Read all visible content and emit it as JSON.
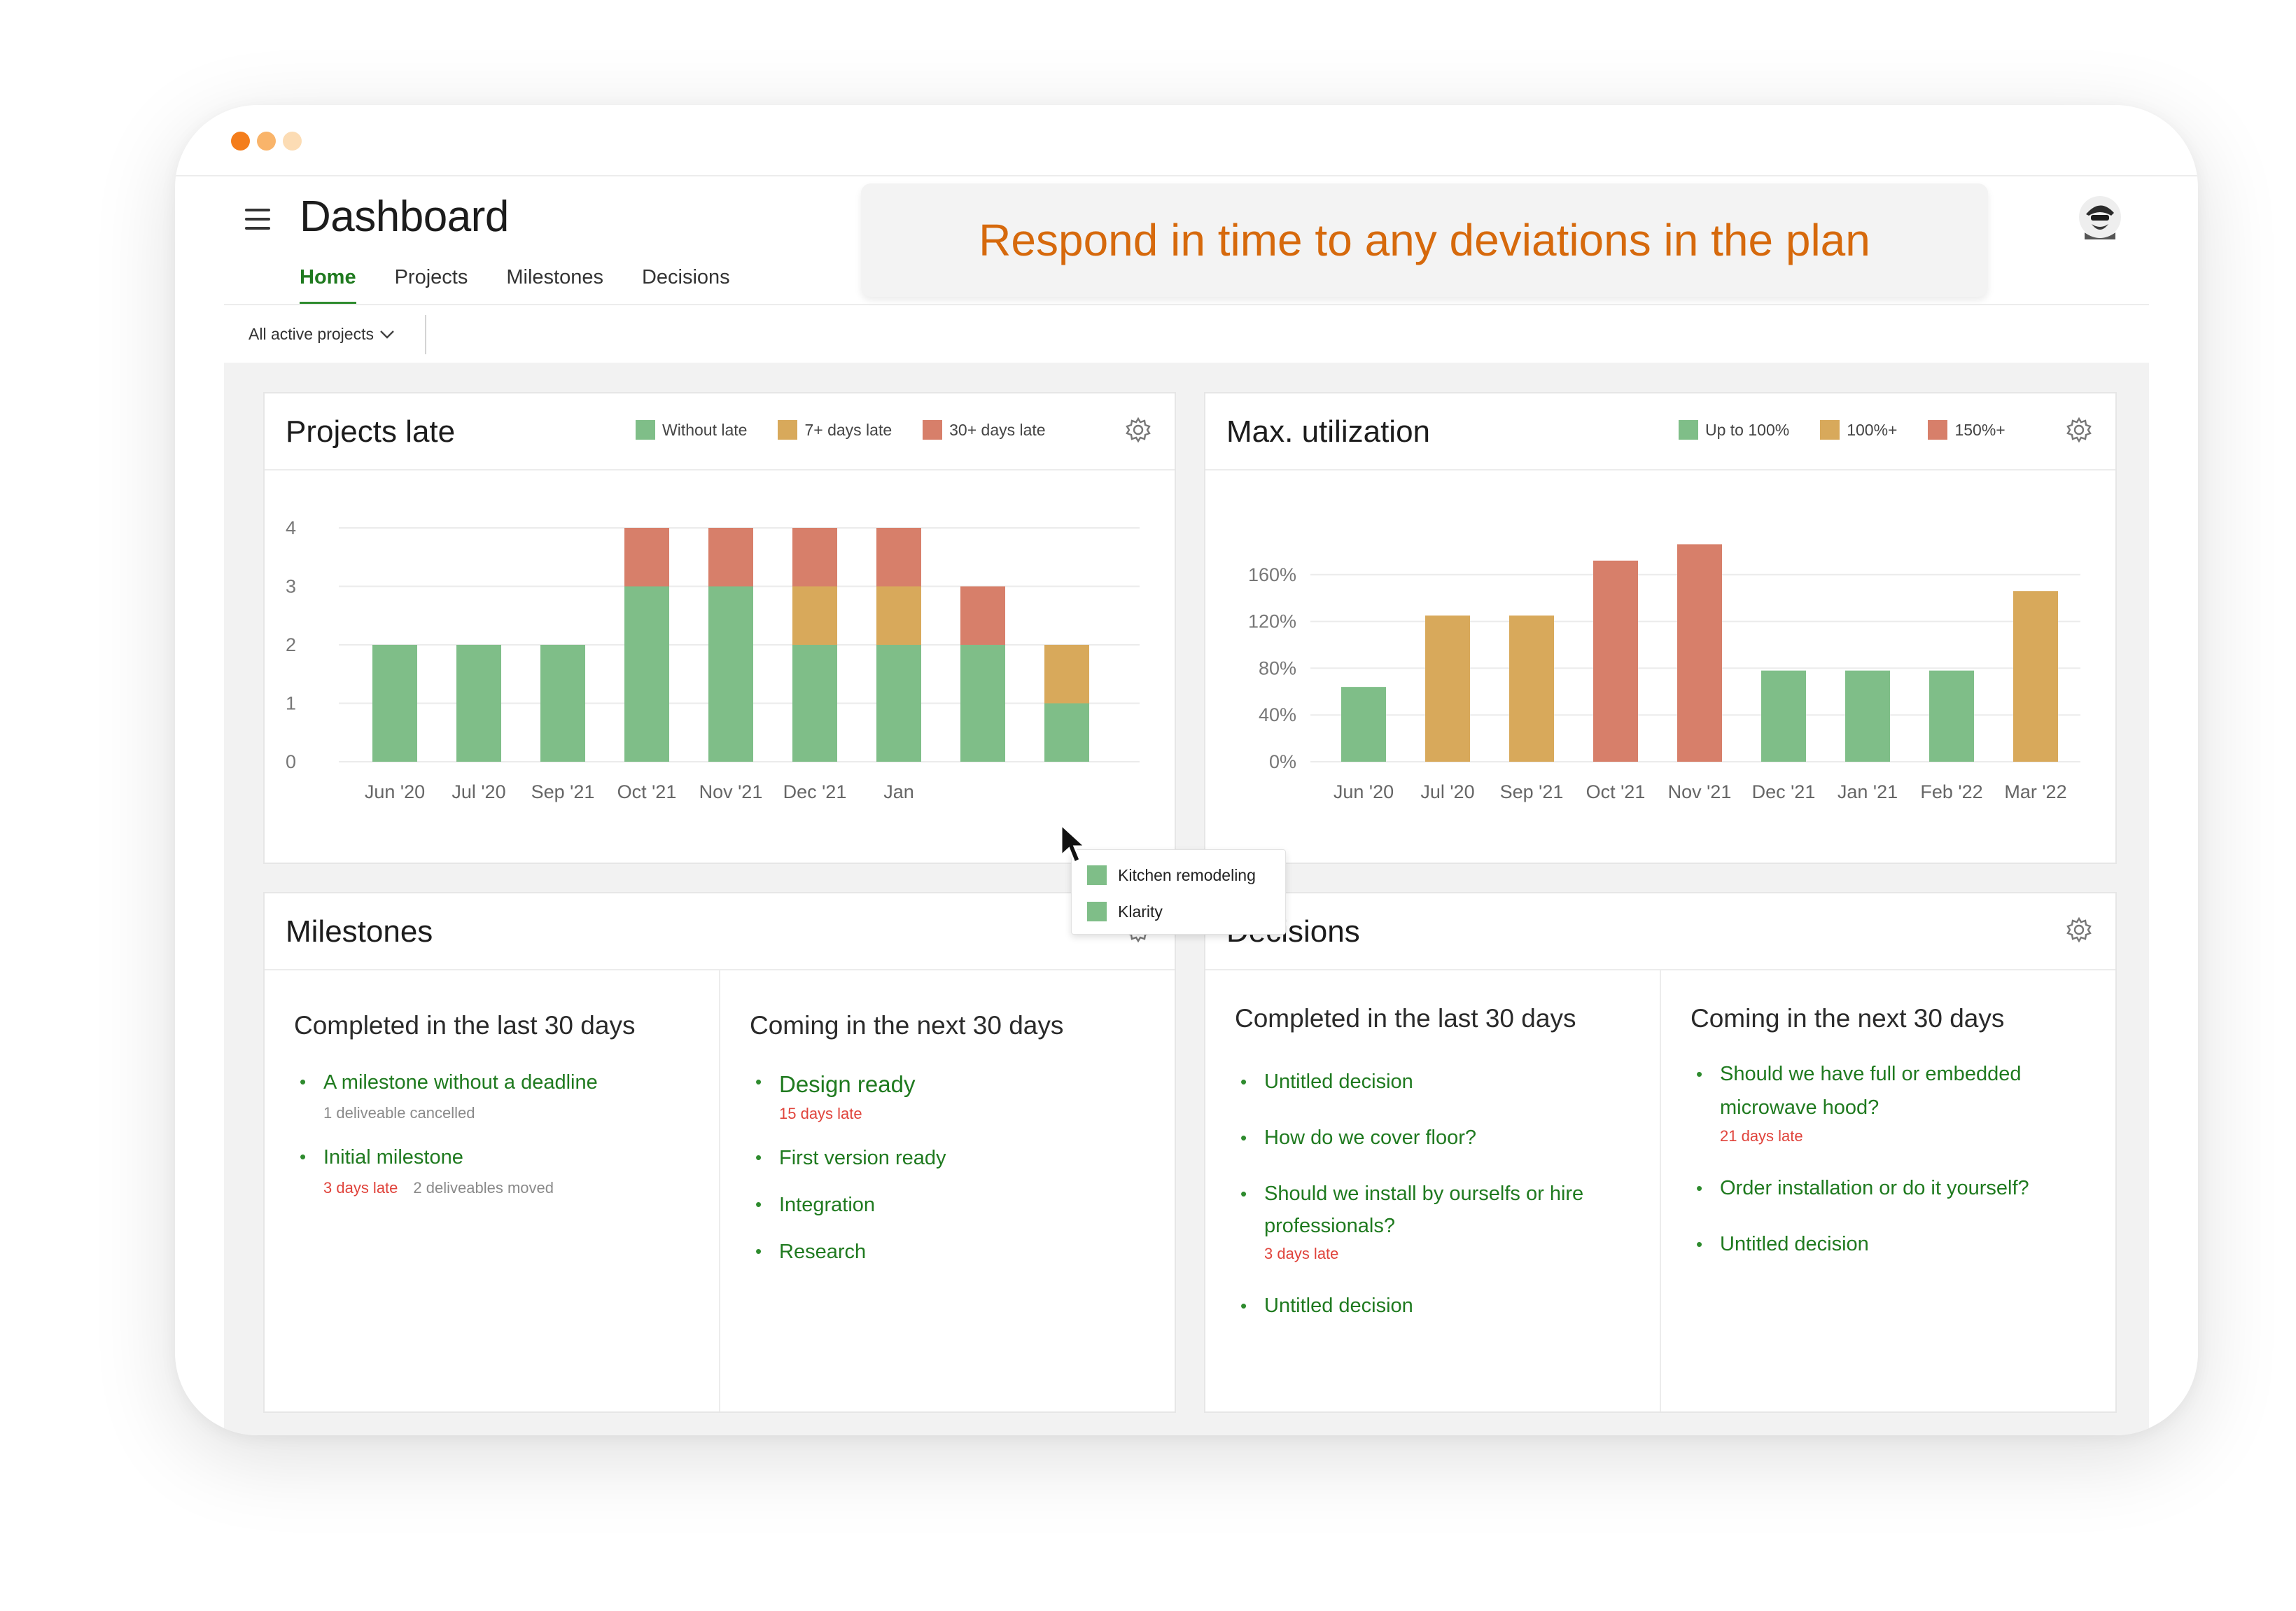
{
  "window": {
    "dot_colors": [
      "#f47d1b",
      "#f9b46a",
      "#fcdcb4"
    ]
  },
  "header": {
    "title": "Dashboard",
    "tabs": [
      "Home",
      "Projects",
      "Milestones",
      "Decisions"
    ],
    "active_tab": "Home",
    "banner": "Respond in time to any deviations in the plan",
    "filter": "All active projects"
  },
  "colors": {
    "green": "#7fbe88",
    "orange": "#d8a95b",
    "red": "#d77f6a",
    "accent": "#1f7a1f",
    "late": "#e0433b"
  },
  "projects_late": {
    "title": "Projects late",
    "legend": [
      {
        "label": "Without late",
        "color": "#7fbe88"
      },
      {
        "label": "7+ days late",
        "color": "#d8a95b"
      },
      {
        "label": "30+ days late",
        "color": "#d77f6a"
      }
    ]
  },
  "utilization": {
    "title": "Max. utilization",
    "legend": [
      {
        "label": "Up to 100%",
        "color": "#7fbe88"
      },
      {
        "label": "100%+",
        "color": "#d8a95b"
      },
      {
        "label": "150%+",
        "color": "#d77f6a"
      }
    ]
  },
  "tooltip": {
    "items": [
      "Kitchen remodeling",
      "Klarity"
    ]
  },
  "milestones": {
    "title": "Milestones",
    "completed": {
      "title": "Completed in the last 30 days",
      "items": [
        {
          "label": "A milestone without a deadline",
          "late": "",
          "meta": "1 deliveable cancelled"
        },
        {
          "label": "Initial milestone",
          "late": "3 days late",
          "meta": "2 deliveables moved"
        }
      ]
    },
    "coming": {
      "title": "Coming in the next 30 days",
      "items": [
        {
          "label": "Design ready",
          "late": "15 days late"
        },
        {
          "label": "First version ready",
          "late": ""
        },
        {
          "label": "Integration",
          "late": ""
        },
        {
          "label": "Research",
          "late": ""
        }
      ]
    }
  },
  "decisions": {
    "title": "Decisions",
    "completed": {
      "title": "Completed in the last 30 days",
      "items": [
        {
          "label": "Untitled decision",
          "late": ""
        },
        {
          "label": "How do we cover floor?",
          "late": ""
        },
        {
          "label": "Should we install by ourselfs or hire professionals?",
          "late": "3 days late"
        },
        {
          "label": "Untitled decision",
          "late": ""
        }
      ]
    },
    "coming": {
      "title": "Coming in the next 30 days",
      "items": [
        {
          "label": "Should we have full or embedded microwave hood?",
          "late": "21 days late"
        },
        {
          "label": "Order installation or do it yourself?",
          "late": ""
        },
        {
          "label": "Untitled decision",
          "late": ""
        }
      ]
    }
  },
  "chart_data": [
    {
      "type": "bar",
      "stacked": true,
      "title": "Projects late",
      "categories": [
        "Jun '20",
        "Jul '20",
        "Sep '21",
        "Oct '21",
        "Nov '21",
        "Dec '21",
        "Jan",
        "",
        ""
      ],
      "series": [
        {
          "name": "Without late",
          "color": "#7fbe88",
          "values": [
            2,
            2,
            2,
            3,
            3,
            2,
            2,
            2,
            1
          ]
        },
        {
          "name": "7+ days late",
          "color": "#d8a95b",
          "values": [
            0,
            0,
            0,
            0,
            0,
            1,
            1,
            0,
            1
          ]
        },
        {
          "name": "30+ days late",
          "color": "#d77f6a",
          "values": [
            0,
            0,
            0,
            1,
            1,
            1,
            1,
            1,
            0
          ]
        }
      ],
      "yticks": [
        0,
        1,
        2,
        3,
        4
      ],
      "ylim": [
        0,
        4
      ],
      "grid": true,
      "legend": "top-right"
    },
    {
      "type": "bar",
      "title": "Max. utilization",
      "categories": [
        "Jun '20",
        "Jul '20",
        "Sep '21",
        "Oct '21",
        "Nov '21",
        "Dec '21",
        "Jan '21",
        "Feb '22",
        "Mar '22"
      ],
      "values": [
        64,
        125,
        125,
        172,
        186,
        78,
        78,
        78,
        146
      ],
      "colors": [
        "#7fbe88",
        "#d8a95b",
        "#d8a95b",
        "#d77f6a",
        "#d77f6a",
        "#7fbe88",
        "#7fbe88",
        "#7fbe88",
        "#d8a95b"
      ],
      "yticks": [
        "0%",
        "40%",
        "80%",
        "120%",
        "160%"
      ],
      "ylim": [
        0,
        200
      ],
      "grid": true,
      "legend": "top-right"
    }
  ]
}
